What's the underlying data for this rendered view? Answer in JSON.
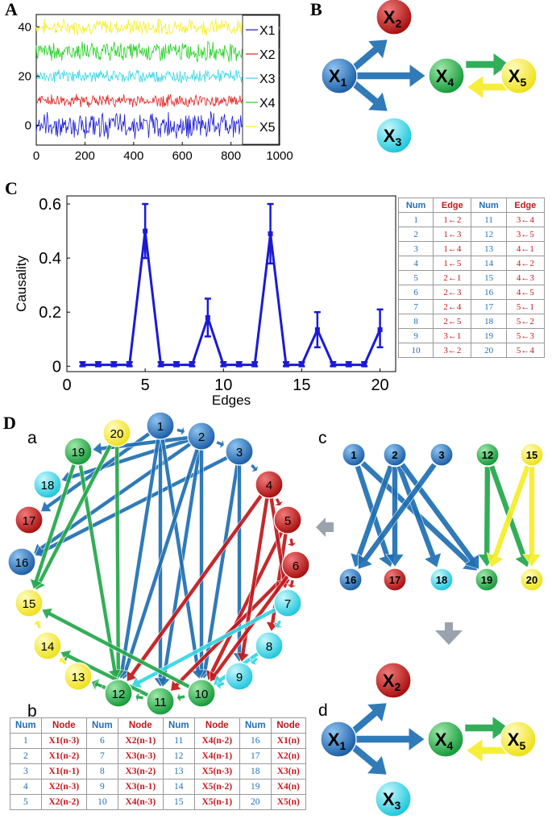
{
  "labels": {
    "panel_a": "A",
    "panel_b": "B",
    "panel_c": "C",
    "panel_d": "D",
    "sub_a": "a",
    "sub_b": "b",
    "sub_c": "c",
    "sub_d": "d"
  },
  "colors": {
    "blue": "#1f6fb3",
    "red": "#c0181c",
    "cyan": "#33d6e6",
    "green": "#22a84a",
    "yellow": "#f5ee2a",
    "series_blue": "#1a1ad6"
  },
  "nodes": {
    "x1": "X1",
    "x2": "X2",
    "x3": "X3",
    "x4": "X4",
    "x5": "X5"
  },
  "chart_data": [
    {
      "type": "line",
      "panel": "A",
      "x_ticks": [
        "0",
        "200",
        "400",
        "600",
        "800",
        "1000"
      ],
      "y_ticks": [
        "0",
        "20",
        "40"
      ],
      "xlim": [
        0,
        1000
      ],
      "ylim": [
        -8,
        45
      ],
      "legend": [
        "X1",
        "X2",
        "X3",
        "X4",
        "X5"
      ],
      "legend_position": "right",
      "series": [
        {
          "name": "X1",
          "offset": 0,
          "amplitude": 4
        },
        {
          "name": "X2",
          "offset": 10,
          "amplitude": 2
        },
        {
          "name": "X3",
          "offset": 20,
          "amplitude": 2
        },
        {
          "name": "X4",
          "offset": 30,
          "amplitude": 3
        },
        {
          "name": "X5",
          "offset": 40,
          "amplitude": 2.5
        }
      ]
    },
    {
      "type": "line",
      "panel": "C",
      "xlabel": "Edges",
      "ylabel": "Causality",
      "x_ticks": [
        "0",
        "5",
        "10",
        "15",
        "20"
      ],
      "y_ticks": [
        "0",
        "0.2",
        "0.4",
        "0.6"
      ],
      "xlim": [
        0,
        21
      ],
      "ylim": [
        -0.02,
        0.63
      ],
      "x": [
        1,
        2,
        3,
        4,
        5,
        6,
        7,
        8,
        9,
        10,
        11,
        12,
        13,
        14,
        15,
        16,
        17,
        18,
        19,
        20
      ],
      "values": [
        0.005,
        0.005,
        0.005,
        0.005,
        0.5,
        0.005,
        0.005,
        0.005,
        0.18,
        0.005,
        0.005,
        0.005,
        0.49,
        0.005,
        0.005,
        0.135,
        0.005,
        0.005,
        0.005,
        0.135
      ],
      "error_high": [
        0.015,
        0.015,
        0.015,
        0.015,
        0.6,
        0.015,
        0.015,
        0.015,
        0.25,
        0.015,
        0.015,
        0.015,
        0.6,
        0.015,
        0.015,
        0.2,
        0.015,
        0.015,
        0.015,
        0.21
      ],
      "error_low": [
        0,
        0,
        0,
        0,
        0.4,
        0,
        0,
        0,
        0.11,
        0,
        0,
        0,
        0.38,
        0,
        0,
        0.07,
        0,
        0,
        0,
        0.07
      ]
    }
  ],
  "edge_table": {
    "headers": [
      "Num",
      "Edge",
      "Num",
      "Edge"
    ],
    "rows": [
      [
        "1",
        "1←2",
        "11",
        "3←4"
      ],
      [
        "2",
        "1←3",
        "12",
        "3←5"
      ],
      [
        "3",
        "1←4",
        "13",
        "4←1"
      ],
      [
        "4",
        "1←5",
        "14",
        "4←2"
      ],
      [
        "5",
        "2←1",
        "15",
        "4←3"
      ],
      [
        "6",
        "2←3",
        "16",
        "4←5"
      ],
      [
        "7",
        "2←4",
        "17",
        "5←1"
      ],
      [
        "8",
        "2←5",
        "18",
        "5←2"
      ],
      [
        "9",
        "3←1",
        "19",
        "5←3"
      ],
      [
        "10",
        "3←2",
        "20",
        "5←4"
      ]
    ]
  },
  "node_table": {
    "headers": [
      "Num",
      "Node",
      "Num",
      "Node",
      "Num",
      "Node",
      "Num",
      "Node"
    ],
    "rows": [
      [
        "1",
        "X1(n-3)",
        "6",
        "X2(n-1)",
        "11",
        "X4(n-2)",
        "16",
        "X1(n)"
      ],
      [
        "2",
        "X1(n-2)",
        "7",
        "X3(n-3)",
        "12",
        "X4(n-1)",
        "17",
        "X2(n)"
      ],
      [
        "3",
        "X1(n-1)",
        "8",
        "X3(n-2)",
        "13",
        "X5(n-3)",
        "18",
        "X3(n)"
      ],
      [
        "4",
        "X2(n-3)",
        "9",
        "X3(n-1)",
        "14",
        "X5(n-2)",
        "19",
        "X4(n)"
      ],
      [
        "5",
        "X2(n-2)",
        "10",
        "X4(n-3)",
        "15",
        "X5(n-1)",
        "20",
        "X5(n)"
      ]
    ]
  },
  "circle_nodes": [
    "1",
    "2",
    "3",
    "4",
    "5",
    "6",
    "7",
    "8",
    "9",
    "10",
    "11",
    "12",
    "13",
    "14",
    "15",
    "16",
    "17",
    "18",
    "19",
    "20"
  ]
}
